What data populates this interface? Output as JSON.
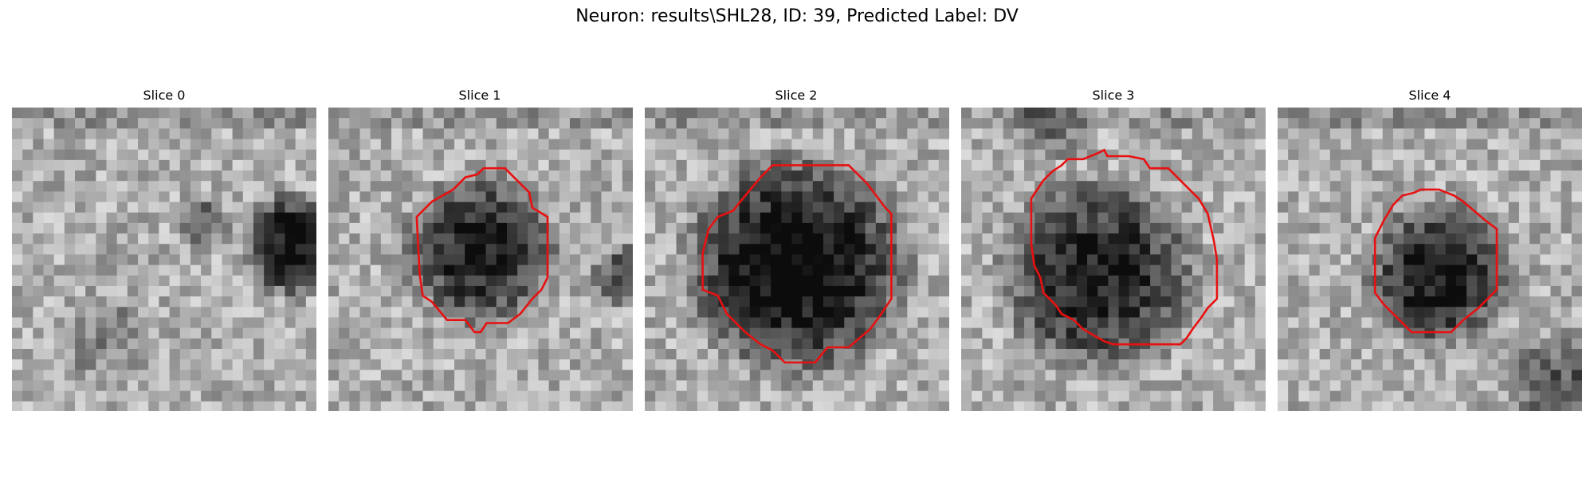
{
  "figure": {
    "title": "Neuron: results\\SHL28, ID: 39, Predicted Label: DV"
  },
  "panels": [
    {
      "title": "Slice 0",
      "has_contour": false,
      "seed": 11,
      "blob": "offcenter"
    },
    {
      "title": "Slice 1",
      "has_contour": true,
      "seed": 23,
      "blob": "center-small"
    },
    {
      "title": "Slice 2",
      "has_contour": true,
      "seed": 37,
      "blob": "center-large"
    },
    {
      "title": "Slice 3",
      "has_contour": true,
      "seed": 41,
      "blob": "center-left"
    },
    {
      "title": "Slice 4",
      "has_contour": true,
      "seed": 53,
      "blob": "center-right"
    }
  ],
  "colors": {
    "contour": "#e81010",
    "background": "#ffffff"
  }
}
